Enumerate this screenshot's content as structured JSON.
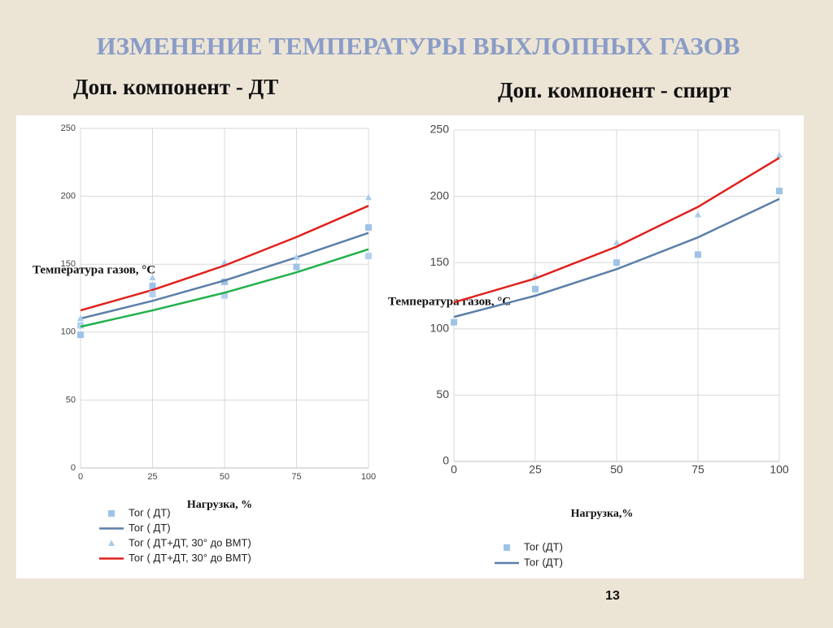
{
  "slide": {
    "title": "ИЗМЕНЕНИЕ ТЕМПЕРАТУРЫ ВЫХЛОПНЫХ ГАЗОВ",
    "page_number": "13"
  },
  "chart_data": [
    {
      "type": "line",
      "title": "Доп. компонент - ДТ",
      "x_label": "Нагрузка, %",
      "y_label": "Температура газов, °С",
      "x": [
        0,
        25,
        50,
        75,
        100
      ],
      "xlim": [
        0,
        100
      ],
      "xticks": [
        0,
        25,
        50,
        75,
        100
      ],
      "ylim": [
        0,
        250
      ],
      "yticks": [
        0,
        50,
        100,
        150,
        200,
        250
      ],
      "grid": true,
      "series": [
        {
          "name": "Тог ( ДТ)",
          "kind": "scatter",
          "marker": "square",
          "color": "#9dc3e6",
          "values": [
            98,
            134,
            137,
            148,
            177
          ]
        },
        {
          "name": "Тог ( ДТ)",
          "kind": "line",
          "color": "#5b7fa8",
          "values": [
            110,
            123,
            138,
            155,
            173
          ]
        },
        {
          "name": "Тог ( ДТ+ДТ, 30° до ВМТ)",
          "kind": "scatter",
          "marker": "triangle",
          "color": "#a9cbea",
          "values": [
            110,
            140,
            151,
            155,
            199
          ]
        },
        {
          "name": "Тог ( ДТ+ДТ, 30° до ВМТ)",
          "kind": "line",
          "color": "#e0201b",
          "values": [
            116,
            131,
            149,
            170,
            193
          ]
        },
        {
          "kind": "scatter",
          "marker": "square",
          "color": "#b3d1ee",
          "values": [
            105,
            128,
            127,
            null,
            156
          ]
        },
        {
          "kind": "line",
          "color": "#22b14c",
          "values": [
            104,
            116,
            129,
            144,
            161
          ]
        }
      ]
    },
    {
      "type": "line",
      "title": "Доп. компонент - спирт",
      "x_label": "Нагрузка,%",
      "y_label": "Температура газов, °С",
      "x": [
        0,
        25,
        50,
        75,
        100
      ],
      "xlim": [
        0,
        100
      ],
      "xticks": [
        0,
        25,
        50,
        75,
        100
      ],
      "ylim": [
        0,
        250
      ],
      "yticks": [
        0,
        50,
        100,
        150,
        200,
        250
      ],
      "grid": true,
      "series": [
        {
          "name": "Тог (ДТ)",
          "kind": "scatter",
          "marker": "square",
          "color": "#9dc3e6",
          "values": [
            105,
            130,
            150,
            156,
            204
          ]
        },
        {
          "name": "Тог (ДТ)",
          "kind": "line",
          "color": "#5b7fa8",
          "values": [
            109,
            125,
            145,
            169,
            198
          ]
        },
        {
          "kind": "scatter",
          "marker": "triangle",
          "color": "#a9cbea",
          "values": [
            null,
            140,
            165,
            186,
            231
          ]
        },
        {
          "kind": "line",
          "color": "#e0201b",
          "values": [
            120,
            138,
            162,
            192,
            229
          ]
        }
      ]
    }
  ]
}
